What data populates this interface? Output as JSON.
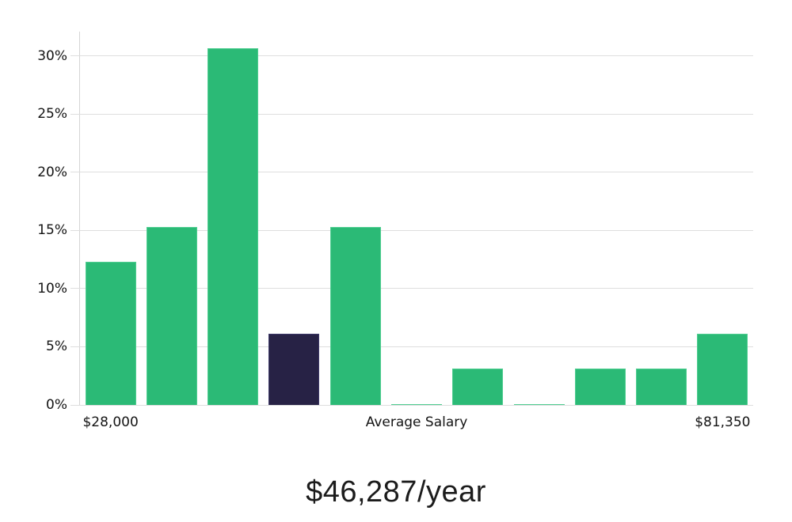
{
  "chart_data": {
    "type": "bar",
    "title": "",
    "xlabel": "",
    "ylabel": "",
    "values": [
      12.3,
      15.3,
      30.7,
      6.1,
      15.3,
      0.1,
      3.1,
      0.1,
      3.1,
      3.1,
      6.1
    ],
    "highlight_index": 3,
    "y_ticks": [
      0,
      5,
      10,
      15,
      20,
      25,
      30
    ],
    "y_tick_suffix": "%",
    "ylim": [
      0,
      32.1
    ],
    "grid": "horizontal",
    "legend": "none",
    "x_tick_labels": [
      {
        "text": "$28,000",
        "bar_index": 0
      },
      {
        "text": "Average Salary",
        "bar_index": 5
      },
      {
        "text": "$81,350",
        "bar_index": 10
      }
    ],
    "colors": {
      "bar": "#2bba76",
      "bar_edge": "#4ecd90",
      "highlight_bar": "#272245",
      "highlight_bar_edge": "#3c3768",
      "gridline": "#dedede",
      "axis": "#d4d4d4",
      "text": "#141414"
    }
  },
  "footer": {
    "salary_text": "$46,287/year"
  }
}
